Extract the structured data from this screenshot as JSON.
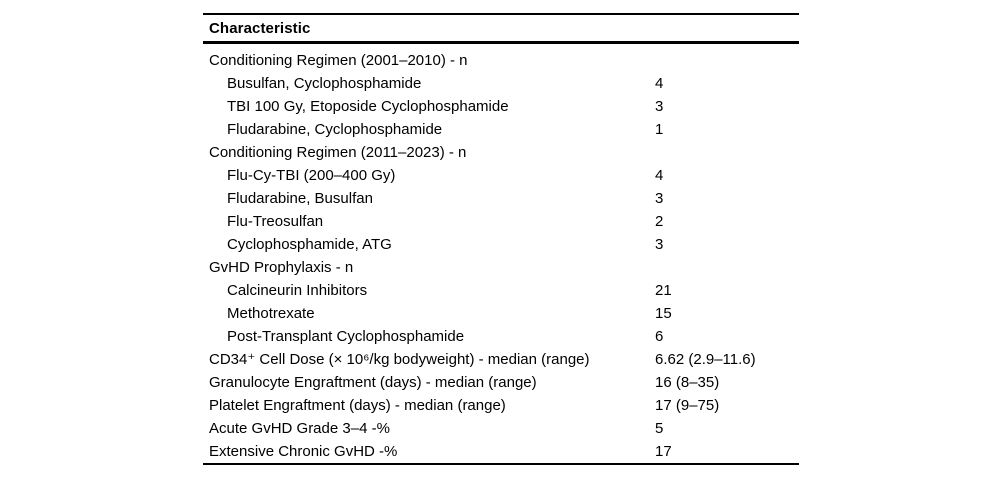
{
  "page": {
    "background_color": "#ffffff",
    "text_color": "#000000",
    "rule_color": "#000000"
  },
  "table": {
    "header": {
      "label": "Characteristic"
    },
    "rows": [
      {
        "label": "Conditioning Regimen (2001–2010) - n",
        "value": "",
        "indent": false
      },
      {
        "label": "Busulfan, Cyclophosphamide",
        "value": "4",
        "indent": true
      },
      {
        "label": "TBI 100 Gy, Etoposide Cyclophosphamide",
        "value": "3",
        "indent": true
      },
      {
        "label": "Fludarabine, Cyclophosphamide",
        "value": "1",
        "indent": true
      },
      {
        "label": "Conditioning Regimen (2011–2023) - n",
        "value": "",
        "indent": false
      },
      {
        "label": "Flu-Cy-TBI (200–400 Gy)",
        "value": "4",
        "indent": true
      },
      {
        "label": "Fludarabine, Busulfan",
        "value": "3",
        "indent": true
      },
      {
        "label": "Flu-Treosulfan",
        "value": "2",
        "indent": true
      },
      {
        "label": "Cyclophosphamide, ATG",
        "value": "3",
        "indent": true
      },
      {
        "label": "GvHD Prophylaxis - n",
        "value": "",
        "indent": false
      },
      {
        "label": "Calcineurin Inhibitors",
        "value": "21",
        "indent": true
      },
      {
        "label": "Methotrexate",
        "value": "15",
        "indent": true
      },
      {
        "label": "Post-Transplant Cyclophosphamide",
        "value": "6",
        "indent": true
      },
      {
        "label": "CD34⁺ Cell Dose (× 10⁶/kg bodyweight) - median (range)",
        "value": "6.62 (2.9–11.6)",
        "indent": false
      },
      {
        "label": "Granulocyte Engraftment (days) - median (range)",
        "value": "16 (8–35)",
        "indent": false
      },
      {
        "label": "Platelet Engraftment (days) - median (range)",
        "value": "17 (9–75)",
        "indent": false
      },
      {
        "label": "Acute GvHD Grade 3–4 -%",
        "value": "5",
        "indent": false
      },
      {
        "label": "Extensive Chronic GvHD -%",
        "value": "17",
        "indent": false
      }
    ]
  }
}
